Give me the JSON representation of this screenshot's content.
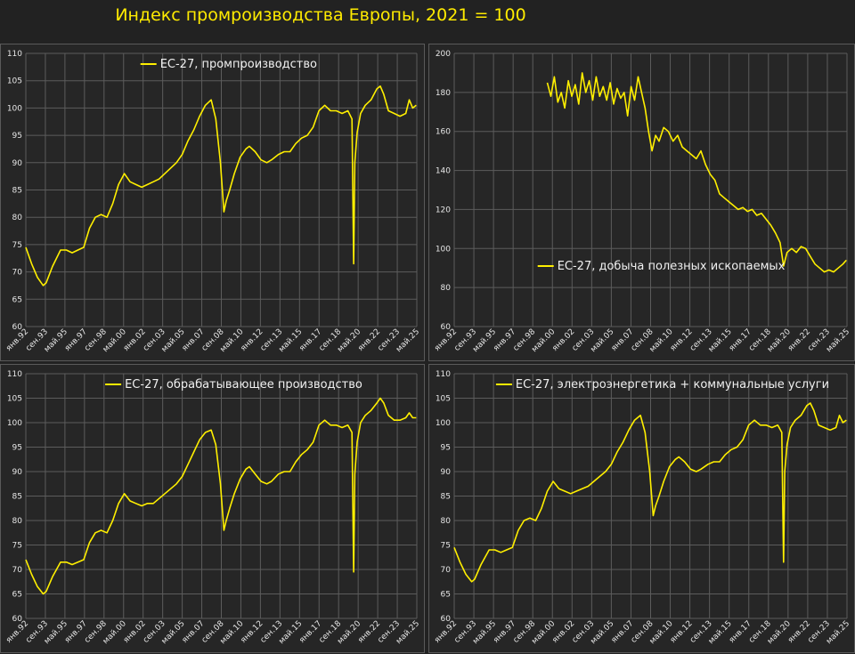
{
  "title": "Индекс промроизводства Европы, 2021 = 100",
  "colors": {
    "background": "#222222",
    "panel": "#262626",
    "grid": "#5c5c5c",
    "line": "#ffef00",
    "title": "#ffeb00",
    "text": "#e6e6e6"
  },
  "chart_data": [
    {
      "type": "line",
      "legend": "ЕС-27, промпроизводство",
      "legend_position": "top-center",
      "grid": true,
      "ylim": [
        60,
        110
      ],
      "yticks": [
        60,
        65,
        70,
        75,
        80,
        85,
        90,
        95,
        100,
        105,
        110
      ],
      "xlim": [
        1992.0,
        2025.75
      ],
      "xticks": [
        "янв.92",
        "сен.93",
        "май.95",
        "янв.97",
        "сен.98",
        "май.00",
        "янв.02",
        "сен.03",
        "май.05",
        "янв.07",
        "сен.08",
        "май.10",
        "янв.12",
        "сен.13",
        "май.15",
        "янв.17",
        "сен.18",
        "май.20",
        "янв.22",
        "сен.23",
        "май.25"
      ],
      "series": [
        {
          "x": [
            1992.0,
            1992.5,
            1993.0,
            1993.5,
            1993.75,
            1994.3,
            1995.0,
            1995.5,
            1996.0,
            1996.5,
            1997.0,
            1997.5,
            1998.0,
            1998.5,
            1999.0,
            1999.5,
            2000.0,
            2000.5,
            2001.0,
            2001.5,
            2002.0,
            2002.5,
            2003.0,
            2003.5,
            2004.0,
            2004.5,
            2005.0,
            2005.5,
            2006.0,
            2006.5,
            2007.0,
            2007.5,
            2008.0,
            2008.4,
            2008.8,
            2009.1,
            2009.3,
            2009.6,
            2010.0,
            2010.5,
            2011.0,
            2011.3,
            2011.8,
            2012.3,
            2012.8,
            2013.2,
            2013.8,
            2014.3,
            2014.8,
            2015.3,
            2015.8,
            2016.3,
            2016.8,
            2017.3,
            2017.8,
            2018.3,
            2018.8,
            2019.3,
            2019.8,
            2020.15,
            2020.3,
            2020.4,
            2020.6,
            2020.9,
            2021.3,
            2021.8,
            2022.3,
            2022.6,
            2022.9,
            2023.3,
            2023.8,
            2024.3,
            2024.8,
            2025.1,
            2025.4,
            2025.7
          ],
          "y": [
            74.5,
            71.5,
            69.0,
            67.5,
            68.0,
            71.0,
            74.0,
            74.0,
            73.5,
            74.0,
            74.5,
            78.0,
            80.0,
            80.5,
            80.0,
            82.5,
            86.0,
            88.0,
            86.5,
            86.0,
            85.5,
            86.0,
            86.5,
            87.0,
            88.0,
            89.0,
            90.0,
            91.5,
            94.0,
            96.0,
            98.5,
            100.5,
            101.5,
            98.0,
            90.0,
            81.0,
            83.0,
            85.0,
            88.0,
            91.0,
            92.5,
            93.0,
            92.0,
            90.5,
            90.0,
            90.5,
            91.5,
            92.0,
            92.0,
            93.5,
            94.5,
            95.0,
            96.5,
            99.5,
            100.5,
            99.5,
            99.5,
            99.0,
            99.5,
            98.0,
            71.5,
            90.0,
            95.5,
            99.0,
            100.5,
            101.5,
            103.5,
            104.0,
            102.5,
            99.5,
            99.0,
            98.5,
            99.0,
            101.5,
            100.0,
            100.5
          ]
        }
      ]
    },
    {
      "type": "line",
      "legend": "ЕС-27, добыча полезных ископаемых",
      "legend_position": "bottom-center",
      "grid": true,
      "ylim": [
        60,
        200
      ],
      "yticks": [
        60,
        80,
        100,
        120,
        140,
        160,
        180,
        200
      ],
      "xlim": [
        1992.0,
        2025.75
      ],
      "xticks": [
        "янв.92",
        "сен.93",
        "май.95",
        "янв.97",
        "сен.98",
        "май.00",
        "янв.02",
        "сен.03",
        "май.05",
        "янв.07",
        "сен.08",
        "май.10",
        "янв.12",
        "сен.13",
        "май.15",
        "янв.17",
        "сен.18",
        "май.20",
        "янв.22",
        "сен.23",
        "май.25"
      ],
      "series": [
        {
          "x": [
            2000.0,
            2000.3,
            2000.6,
            2000.9,
            2001.2,
            2001.5,
            2001.8,
            2002.1,
            2002.4,
            2002.7,
            2003.0,
            2003.3,
            2003.6,
            2003.9,
            2004.2,
            2004.5,
            2004.8,
            2005.1,
            2005.4,
            2005.7,
            2006.0,
            2006.3,
            2006.6,
            2006.9,
            2007.2,
            2007.5,
            2007.8,
            2008.1,
            2008.4,
            2008.7,
            2009.0,
            2009.3,
            2009.6,
            2010.0,
            2010.4,
            2010.8,
            2011.2,
            2011.6,
            2012.0,
            2012.4,
            2012.8,
            2013.2,
            2013.6,
            2014.0,
            2014.4,
            2014.8,
            2015.2,
            2015.6,
            2016.0,
            2016.4,
            2016.8,
            2017.2,
            2017.6,
            2018.0,
            2018.4,
            2018.8,
            2019.2,
            2019.6,
            2020.0,
            2020.3,
            2020.6,
            2021.0,
            2021.4,
            2021.8,
            2022.2,
            2022.6,
            2023.0,
            2023.4,
            2023.8,
            2024.2,
            2024.6,
            2025.0,
            2025.4,
            2025.7
          ],
          "y": [
            185,
            178,
            188,
            175,
            180,
            172,
            186,
            178,
            184,
            174,
            190,
            180,
            186,
            176,
            188,
            178,
            183,
            176,
            185,
            174,
            182,
            177,
            180,
            168,
            183,
            176,
            188,
            180,
            172,
            160,
            150,
            158,
            155,
            162,
            160,
            155,
            158,
            152,
            150,
            148,
            146,
            150,
            143,
            138,
            135,
            128,
            126,
            124,
            122,
            120,
            121,
            119,
            120,
            117,
            118,
            115,
            112,
            108,
            103,
            91,
            98,
            100,
            98,
            101,
            100,
            96,
            92,
            90,
            88,
            89,
            88,
            90,
            92,
            94
          ]
        }
      ]
    },
    {
      "type": "line",
      "legend": "ЕС-27, обрабатывающее производство",
      "legend_position": "top-center",
      "grid": true,
      "ylim": [
        60,
        110
      ],
      "yticks": [
        60,
        65,
        70,
        75,
        80,
        85,
        90,
        95,
        100,
        105,
        110
      ],
      "xlim": [
        1992.0,
        2025.75
      ],
      "xticks": [
        "янв.92",
        "сен.93",
        "май.95",
        "янв.97",
        "сен.98",
        "май.00",
        "янв.02",
        "сен.03",
        "май.05",
        "янв.07",
        "сен.08",
        "май.10",
        "янв.12",
        "сен.13",
        "май.15",
        "янв.17",
        "сен.18",
        "май.20",
        "янв.22",
        "сен.23",
        "май.25"
      ],
      "series": [
        {
          "x": [
            1992.0,
            1992.5,
            1993.0,
            1993.5,
            1993.75,
            1994.3,
            1995.0,
            1995.5,
            1996.0,
            1996.5,
            1997.0,
            1997.5,
            1998.0,
            1998.5,
            1999.0,
            1999.5,
            2000.0,
            2000.5,
            2001.0,
            2001.5,
            2002.0,
            2002.5,
            2003.0,
            2003.5,
            2004.0,
            2004.5,
            2005.0,
            2005.5,
            2006.0,
            2006.5,
            2007.0,
            2007.5,
            2008.0,
            2008.4,
            2008.8,
            2009.1,
            2009.3,
            2009.6,
            2010.0,
            2010.5,
            2011.0,
            2011.3,
            2011.8,
            2012.3,
            2012.8,
            2013.2,
            2013.8,
            2014.3,
            2014.8,
            2015.3,
            2015.8,
            2016.3,
            2016.8,
            2017.3,
            2017.8,
            2018.3,
            2018.8,
            2019.3,
            2019.8,
            2020.15,
            2020.3,
            2020.4,
            2020.6,
            2020.9,
            2021.3,
            2021.8,
            2022.3,
            2022.6,
            2022.9,
            2023.3,
            2023.8,
            2024.3,
            2024.8,
            2025.1,
            2025.4,
            2025.7
          ],
          "y": [
            72.0,
            69.0,
            66.5,
            65.0,
            65.5,
            68.5,
            71.5,
            71.5,
            71.0,
            71.5,
            72.0,
            75.5,
            77.5,
            78.0,
            77.5,
            80.0,
            83.5,
            85.5,
            84.0,
            83.5,
            83.0,
            83.5,
            83.5,
            84.5,
            85.5,
            86.5,
            87.5,
            89.0,
            91.5,
            94.0,
            96.5,
            98.0,
            98.5,
            95.5,
            87.5,
            78.0,
            80.0,
            82.5,
            85.5,
            88.5,
            90.5,
            91.0,
            89.5,
            88.0,
            87.5,
            88.0,
            89.5,
            90.0,
            90.0,
            92.0,
            93.5,
            94.5,
            96.0,
            99.5,
            100.5,
            99.5,
            99.5,
            99.0,
            99.5,
            98.0,
            69.5,
            89.5,
            96.0,
            100.0,
            101.5,
            102.5,
            104.0,
            105.0,
            104.0,
            101.5,
            100.5,
            100.5,
            101.0,
            102.0,
            101.0,
            101.0
          ]
        }
      ]
    },
    {
      "type": "line",
      "legend": "ЕС-27, электроэнергетика + коммунальные услуги",
      "legend_position": "top-center",
      "grid": true,
      "ylim": [
        60,
        110
      ],
      "yticks": [
        60,
        65,
        70,
        75,
        80,
        85,
        90,
        95,
        100,
        105,
        110
      ],
      "xlim": [
        1992.0,
        2025.75
      ],
      "xticks": [
        "янв.92",
        "сен.93",
        "май.95",
        "янв.97",
        "сен.98",
        "май.00",
        "янв.02",
        "сен.03",
        "май.05",
        "янв.07",
        "сен.08",
        "май.10",
        "янв.12",
        "сен.13",
        "май.15",
        "янв.17",
        "сен.18",
        "май.20",
        "янв.22",
        "сен.23",
        "май.25"
      ],
      "series": [
        {
          "x": [
            1992.0,
            1992.5,
            1993.0,
            1993.5,
            1993.75,
            1994.3,
            1995.0,
            1995.5,
            1996.0,
            1996.5,
            1997.0,
            1997.5,
            1998.0,
            1998.5,
            1999.0,
            1999.5,
            2000.0,
            2000.5,
            2001.0,
            2001.5,
            2002.0,
            2002.5,
            2003.0,
            2003.5,
            2004.0,
            2004.5,
            2005.0,
            2005.5,
            2006.0,
            2006.5,
            2007.0,
            2007.5,
            2008.0,
            2008.4,
            2008.8,
            2009.1,
            2009.3,
            2009.6,
            2010.0,
            2010.5,
            2011.0,
            2011.3,
            2011.8,
            2012.3,
            2012.8,
            2013.2,
            2013.8,
            2014.3,
            2014.8,
            2015.3,
            2015.8,
            2016.3,
            2016.8,
            2017.3,
            2017.8,
            2018.3,
            2018.8,
            2019.3,
            2019.8,
            2020.15,
            2020.3,
            2020.4,
            2020.6,
            2020.9,
            2021.3,
            2021.8,
            2022.3,
            2022.6,
            2022.9,
            2023.3,
            2023.8,
            2024.3,
            2024.8,
            2025.1,
            2025.4,
            2025.7
          ],
          "y": [
            74.5,
            71.5,
            69.0,
            67.5,
            68.0,
            71.0,
            74.0,
            74.0,
            73.5,
            74.0,
            74.5,
            78.0,
            80.0,
            80.5,
            80.0,
            82.5,
            86.0,
            88.0,
            86.5,
            86.0,
            85.5,
            86.0,
            86.5,
            87.0,
            88.0,
            89.0,
            90.0,
            91.5,
            94.0,
            96.0,
            98.5,
            100.5,
            101.5,
            98.0,
            90.0,
            81.0,
            83.0,
            85.0,
            88.0,
            91.0,
            92.5,
            93.0,
            92.0,
            90.5,
            90.0,
            90.5,
            91.5,
            92.0,
            92.0,
            93.5,
            94.5,
            95.0,
            96.5,
            99.5,
            100.5,
            99.5,
            99.5,
            99.0,
            99.5,
            98.0,
            71.5,
            90.0,
            95.5,
            99.0,
            100.5,
            101.5,
            103.5,
            104.0,
            102.5,
            99.5,
            99.0,
            98.5,
            99.0,
            101.5,
            100.0,
            100.5
          ]
        }
      ]
    }
  ]
}
